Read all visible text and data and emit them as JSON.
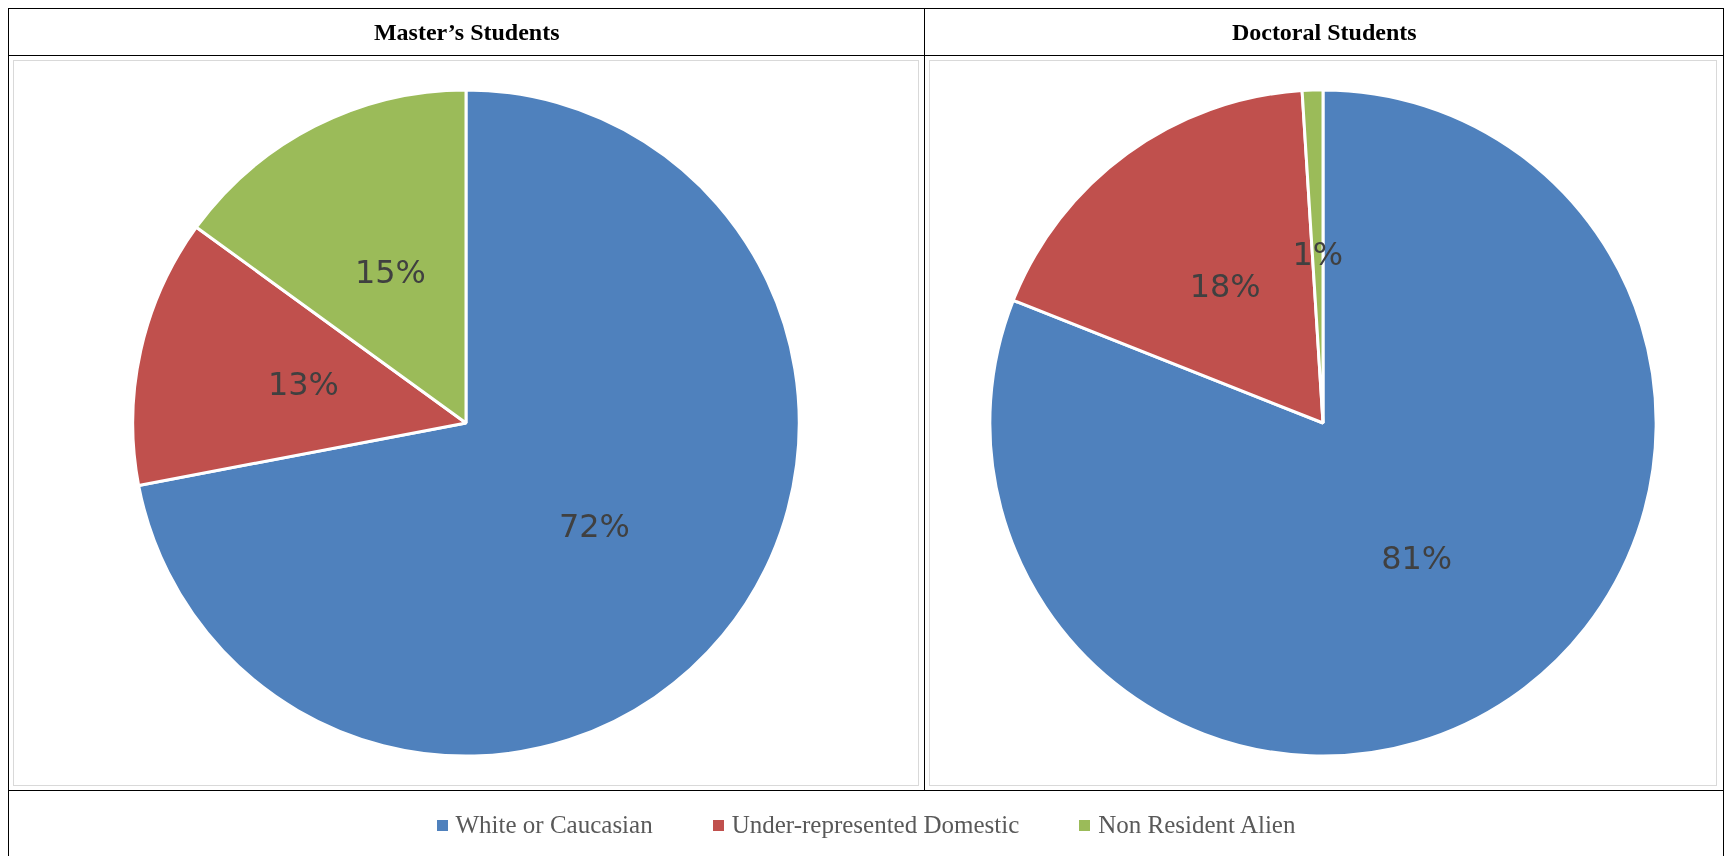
{
  "chart_data": [
    {
      "type": "pie",
      "title": "Master’s Students",
      "categories": [
        "White or Caucasian",
        "Under-represented Domestic",
        "Non Resident Alien"
      ],
      "values": [
        72,
        13,
        15
      ],
      "value_labels": [
        "72%",
        "13%",
        "15%"
      ],
      "colors": [
        "#4f81bd",
        "#c0504d",
        "#9bbb59"
      ],
      "legend": "bottom"
    },
    {
      "type": "pie",
      "title": "Doctoral Students",
      "categories": [
        null,
        null,
        null
      ],
      "values": [
        81,
        18,
        1
      ],
      "value_labels": [
        "81%",
        "18%",
        "1%"
      ],
      "colors": [
        "#4f81bd",
        "#c0504d",
        "#9bbb59"
      ]
    }
  ]
}
